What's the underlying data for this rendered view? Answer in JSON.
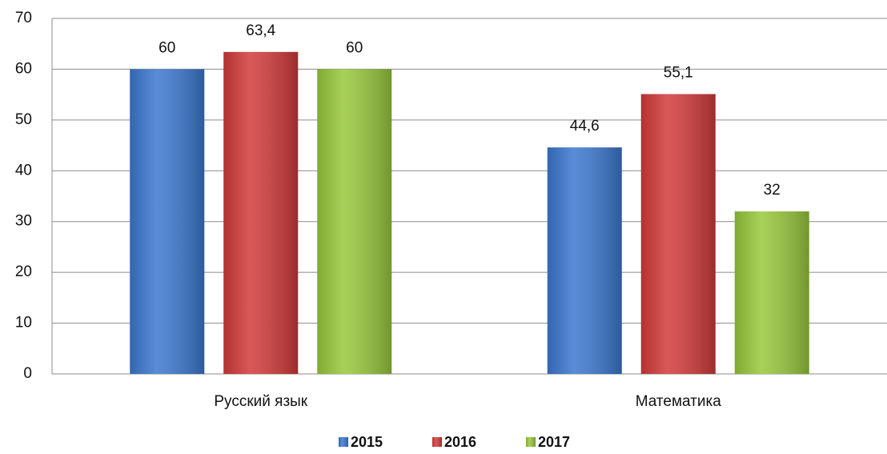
{
  "chart_data": {
    "type": "bar",
    "categories": [
      "Русский язык",
      "Математика"
    ],
    "series": [
      {
        "name": "2015",
        "color": "#3b78cf",
        "values": [
          60,
          44.6
        ],
        "value_labels": [
          "60",
          "44,6"
        ]
      },
      {
        "name": "2016",
        "color": "#d23a3a",
        "values": [
          63.4,
          55.1
        ],
        "value_labels": [
          "63,4",
          "55,1"
        ]
      },
      {
        "name": "2017",
        "color": "#98c83c",
        "values": [
          60,
          32
        ],
        "value_labels": [
          "60",
          "32"
        ]
      }
    ],
    "ylim": [
      0,
      70
    ],
    "yticks": [
      0,
      10,
      20,
      30,
      40,
      50,
      60,
      70
    ],
    "grid": true,
    "legend": "bottom"
  }
}
